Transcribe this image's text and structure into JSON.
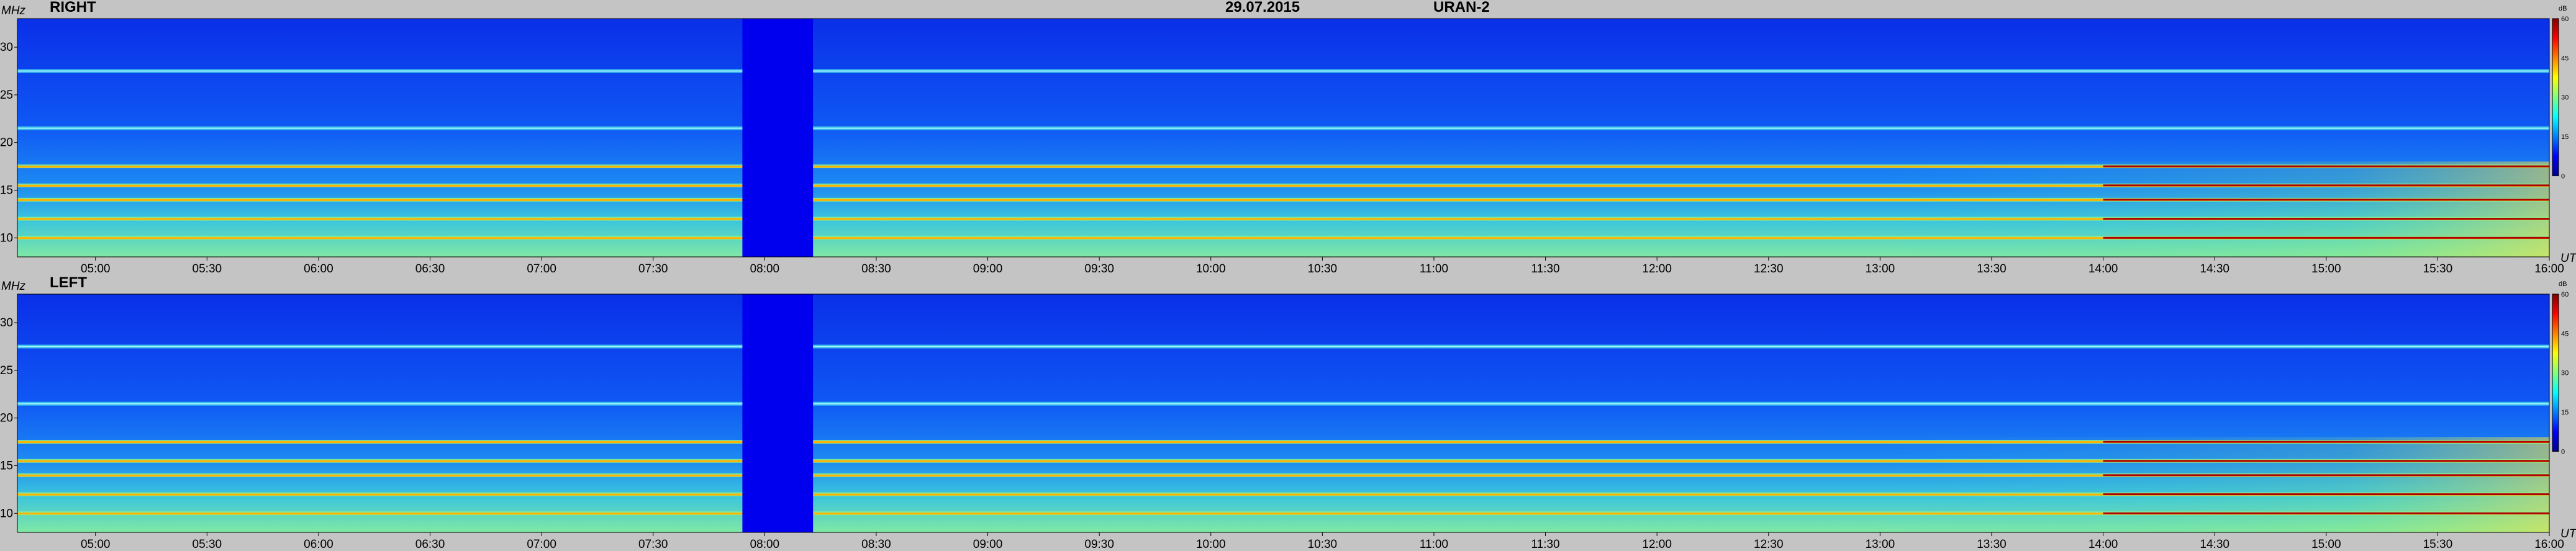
{
  "header": {
    "date": "29.07.2015",
    "instrument": "URAN-2"
  },
  "panels": [
    {
      "title": "RIGHT",
      "y_unit": "MHz",
      "x_unit": "UT",
      "cb_unit": "dB"
    },
    {
      "title": "LEFT",
      "y_unit": "MHz",
      "x_unit": "UT",
      "cb_unit": "dB"
    }
  ],
  "colors": {
    "background": "#c4c4c4",
    "gap": "#0000ee"
  },
  "chart_data": {
    "type": "heatmap",
    "x_axis": {
      "label": "UT",
      "range": [
        "04:39",
        "16:00"
      ],
      "ticks": [
        "05:00",
        "05:30",
        "06:00",
        "06:30",
        "07:00",
        "07:30",
        "08:00",
        "08:30",
        "09:00",
        "09:30",
        "10:00",
        "10:30",
        "11:00",
        "11:30",
        "12:00",
        "12:30",
        "13:00",
        "13:30",
        "14:00",
        "14:30",
        "15:00",
        "15:30",
        "16:00"
      ]
    },
    "y_axis": {
      "label": "MHz",
      "range": [
        8,
        33
      ],
      "ticks": [
        10,
        15,
        20,
        25,
        30
      ]
    },
    "colorbar": {
      "label": "dB",
      "range": [
        0,
        60
      ],
      "ticks": [
        0,
        15,
        30,
        45,
        60
      ],
      "colormap": [
        "#00008f",
        "#0000ff",
        "#0080ff",
        "#00ffff",
        "#80ff80",
        "#ffff00",
        "#ff8000",
        "#ff0000",
        "#800000"
      ]
    },
    "data_gap": {
      "from": "07:54",
      "to": "08:13"
    },
    "persistent_bands_mhz": [
      10,
      12,
      14,
      15.5,
      17.5,
      21.5,
      27.5
    ],
    "series": [
      {
        "name": "RIGHT"
      },
      {
        "name": "LEFT"
      }
    ]
  }
}
